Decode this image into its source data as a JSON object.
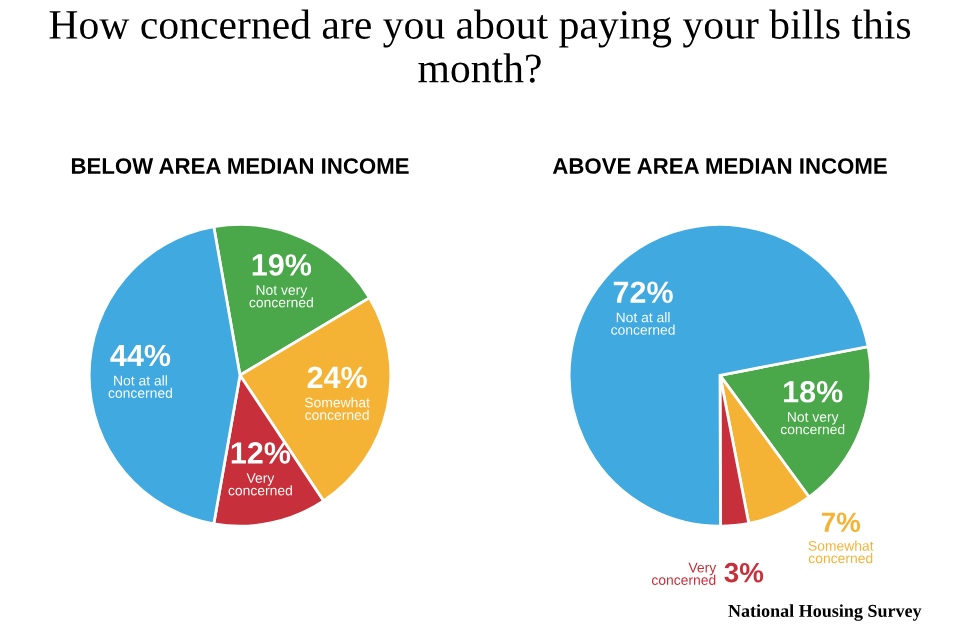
{
  "chart_data": [
    {
      "type": "pie",
      "title": "BELOW AREA MEDIAN INCOME",
      "categories": [
        "Not very concerned",
        "Somewhat concerned",
        "Very concerned",
        "Not at all concerned"
      ],
      "values": [
        19,
        24,
        12,
        44
      ],
      "value_labels": [
        "19%",
        "24%",
        "12%",
        "44%"
      ],
      "colors": [
        "#4aa84a",
        "#f5b335",
        "#c7303a",
        "#3fa9e0"
      ],
      "legend": false
    },
    {
      "type": "pie",
      "title": "ABOVE AREA MEDIAN INCOME",
      "categories": [
        "Not very concerned",
        "Somewhat concerned",
        "Very concerned",
        "Not at all concerned"
      ],
      "values": [
        18,
        7,
        3,
        72
      ],
      "value_labels": [
        "18%",
        "7%",
        "3%",
        "72%"
      ],
      "colors": [
        "#4aa84a",
        "#f5b335",
        "#c7303a",
        "#3fa9e0"
      ],
      "legend": false,
      "annotations": [
        "How concerned are you about paying your bills this month?",
        "National Housing Survey"
      ]
    }
  ]
}
